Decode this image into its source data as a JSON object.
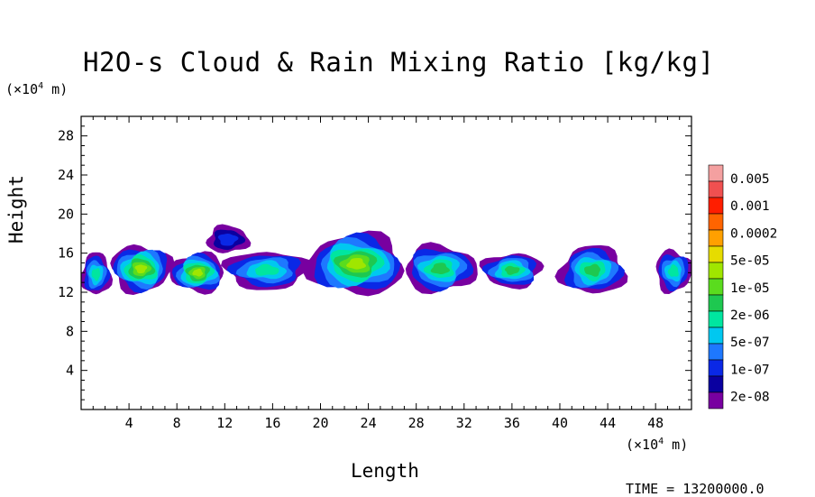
{
  "chart_data": {
    "type": "heatmap",
    "title": "H2O-s Cloud & Rain Mixing Ratio [kg/kg]",
    "xlabel": "Length",
    "ylabel": "Height",
    "x_unit_prefix": "(×10",
    "x_unit_exp": "4",
    "x_unit_suffix": " m)",
    "y_unit_prefix": "(×10",
    "y_unit_exp": "4",
    "y_unit_suffix": " m)",
    "time_text": "TIME = 13200000.0",
    "xlim": [
      0,
      51
    ],
    "ylim": [
      0,
      30
    ],
    "x_ticks": [
      4,
      8,
      12,
      16,
      20,
      24,
      28,
      32,
      36,
      40,
      44,
      48
    ],
    "y_ticks": [
      4,
      8,
      12,
      16,
      20,
      24,
      28
    ],
    "colorbar": {
      "labels": [
        "0.005",
        "0.001",
        "0.0002",
        "5e-05",
        "1e-05",
        "2e-06",
        "5e-07",
        "1e-07",
        "2e-08"
      ],
      "colors": [
        "#f4a0a0",
        "#f05050",
        "#ff1e00",
        "#ff6400",
        "#ffa000",
        "#e6dc00",
        "#a0e600",
        "#5adc1e",
        "#1ec850",
        "#00e6a0",
        "#00c8f0",
        "#1e78ff",
        "#0a28e6",
        "#0a00a0",
        "#7800a0"
      ]
    },
    "cloud_layer": {
      "base_height": 11.5,
      "top_height": 17.5,
      "clusters": [
        {
          "x_start": 0.0,
          "x_end": 2.5,
          "bottom": 11.7,
          "top": 16.0,
          "peak": "2e-06"
        },
        {
          "x_start": 2.5,
          "x_end": 7.5,
          "bottom": 12.0,
          "top": 16.8,
          "peak": "5e-05"
        },
        {
          "x_start": 7.5,
          "x_end": 12.0,
          "bottom": 12.0,
          "top": 16.0,
          "peak": "5e-05"
        },
        {
          "x_start": 10.5,
          "x_end": 14.0,
          "bottom": 16.0,
          "top": 18.8,
          "peak": "1e-07"
        },
        {
          "x_start": 12.0,
          "x_end": 19.0,
          "bottom": 12.3,
          "top": 16.2,
          "peak": "2e-06"
        },
        {
          "x_start": 19.0,
          "x_end": 27.0,
          "bottom": 11.8,
          "top": 18.0,
          "peak": "5e-05"
        },
        {
          "x_start": 27.0,
          "x_end": 33.0,
          "bottom": 12.0,
          "top": 16.8,
          "peak": "1e-05"
        },
        {
          "x_start": 33.5,
          "x_end": 38.5,
          "bottom": 12.5,
          "top": 16.0,
          "peak": "1e-05"
        },
        {
          "x_start": 40.0,
          "x_end": 45.5,
          "bottom": 11.8,
          "top": 16.7,
          "peak": "1e-05"
        },
        {
          "x_start": 48.0,
          "x_end": 51.0,
          "bottom": 12.0,
          "top": 16.3,
          "peak": "2e-06"
        }
      ]
    }
  }
}
